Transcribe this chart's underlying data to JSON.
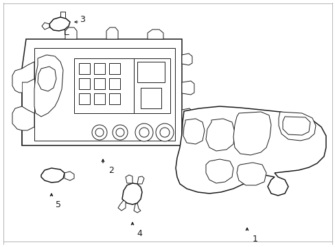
{
  "bg_color": "#ffffff",
  "line_color": "#1a1a1a",
  "lw_main": 1.1,
  "lw_thin": 0.7,
  "fig_width": 4.89,
  "fig_height": 3.6,
  "dpi": 100,
  "label_fontsize": 9
}
